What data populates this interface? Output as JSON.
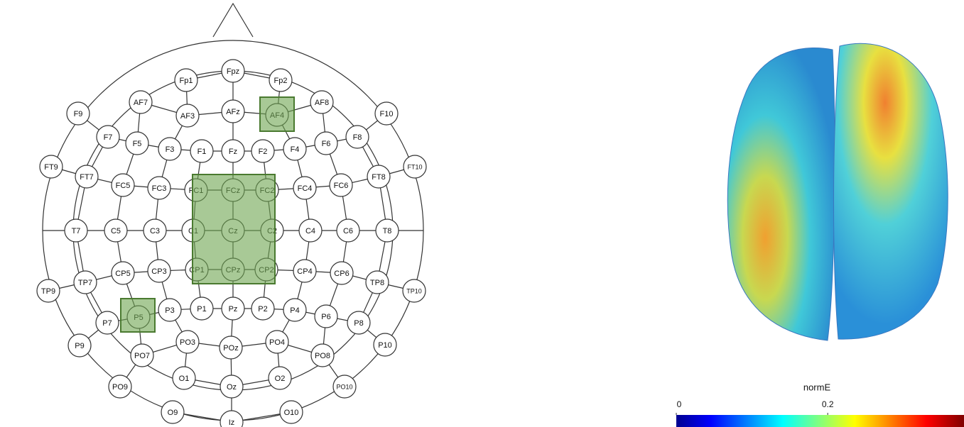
{
  "montage": {
    "electrodes": [
      "Fp1",
      "Fpz",
      "Fp2",
      "AF7",
      "AF3",
      "AFz",
      "AF4",
      "AF8",
      "F9",
      "F7",
      "F5",
      "F3",
      "F1",
      "Fz",
      "F2",
      "F4",
      "F6",
      "F8",
      "F10",
      "FT9",
      "FT7",
      "FC5",
      "FC3",
      "FC1",
      "FCz",
      "FC2",
      "FC4",
      "FC6",
      "FT8",
      "FT10",
      "T7",
      "C5",
      "C3",
      "C1",
      "Cz",
      "C2",
      "C4",
      "C6",
      "T8",
      "TP9",
      "TP7",
      "CP5",
      "CP3",
      "CP1",
      "CPz",
      "CP2",
      "CP4",
      "CP6",
      "TP8",
      "TP10",
      "P9",
      "P7",
      "P5",
      "P3",
      "P1",
      "Pz",
      "P2",
      "P4",
      "P6",
      "P8",
      "P10",
      "PO9",
      "PO7",
      "PO3",
      "POz",
      "PO4",
      "PO8",
      "PO10",
      "O1",
      "Oz",
      "O2",
      "O9",
      "Iz",
      "O10"
    ]
  },
  "colorbar": {
    "title": "normE",
    "lim": [
      0,
      0.38
    ],
    "ticks": [
      0,
      0.2
    ]
  }
}
